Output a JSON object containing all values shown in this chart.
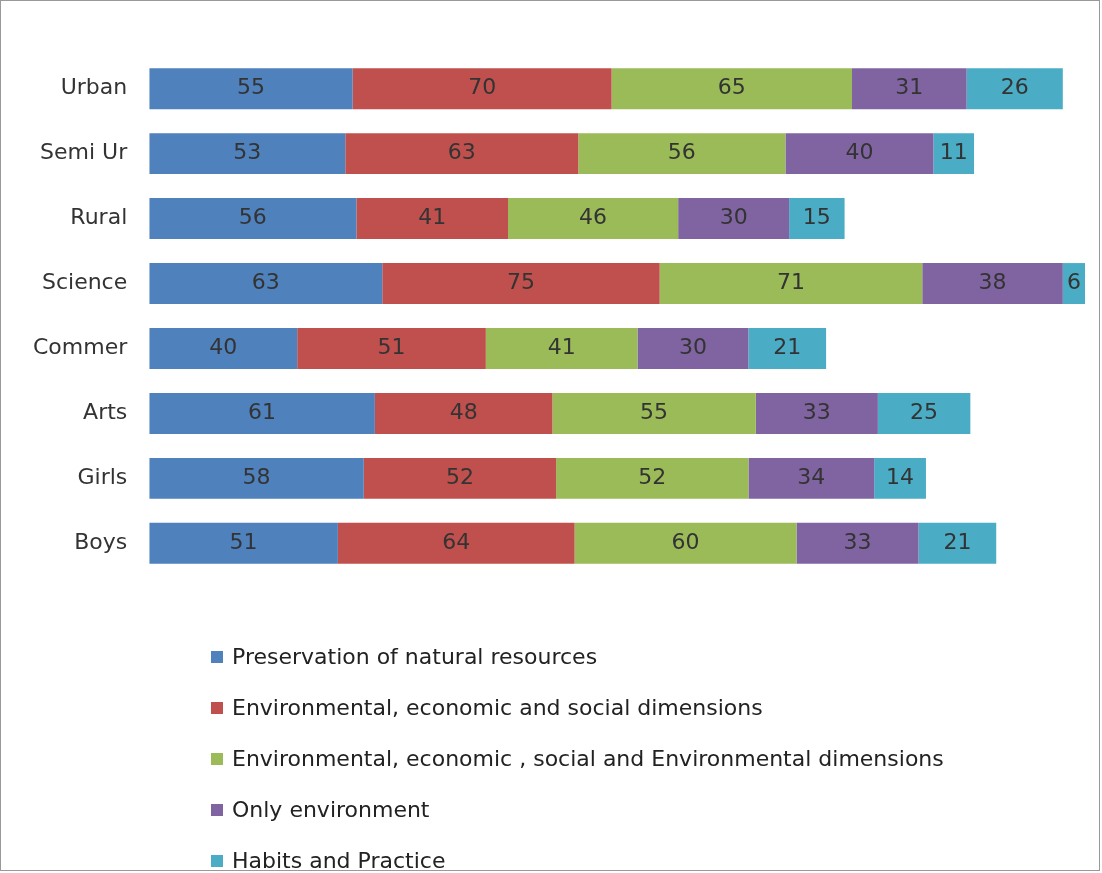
{
  "chart_data": {
    "type": "bar",
    "orientation": "horizontal",
    "stacked": true,
    "data_labels": true,
    "tick_labels": "y",
    "grid": false,
    "legend": "bottom",
    "categories": [
      "Urban",
      "Semi Ur",
      "Rural",
      "Science",
      "Commer",
      "Arts",
      "Girls",
      "Boys"
    ],
    "series": [
      {
        "name": "Preservation of natural resources",
        "color": "#4f81bd",
        "values": [
          55,
          53,
          56,
          63,
          40,
          61,
          58,
          51
        ]
      },
      {
        "name": "Environmental, economic and social dimensions",
        "color": "#c0504d",
        "values": [
          70,
          63,
          41,
          75,
          51,
          48,
          52,
          64
        ]
      },
      {
        "name": "Environmental, economic , social and Environmental dimensions",
        "color": "#9bbb59",
        "values": [
          65,
          56,
          46,
          71,
          41,
          55,
          52,
          60
        ]
      },
      {
        "name": "Only environment",
        "color": "#8064a2",
        "values": [
          31,
          40,
          30,
          38,
          30,
          33,
          34,
          33
        ]
      },
      {
        "name": "Habits and Practice",
        "color": "#4bacc6",
        "values": [
          26,
          11,
          15,
          6,
          21,
          25,
          14,
          21
        ]
      }
    ]
  }
}
